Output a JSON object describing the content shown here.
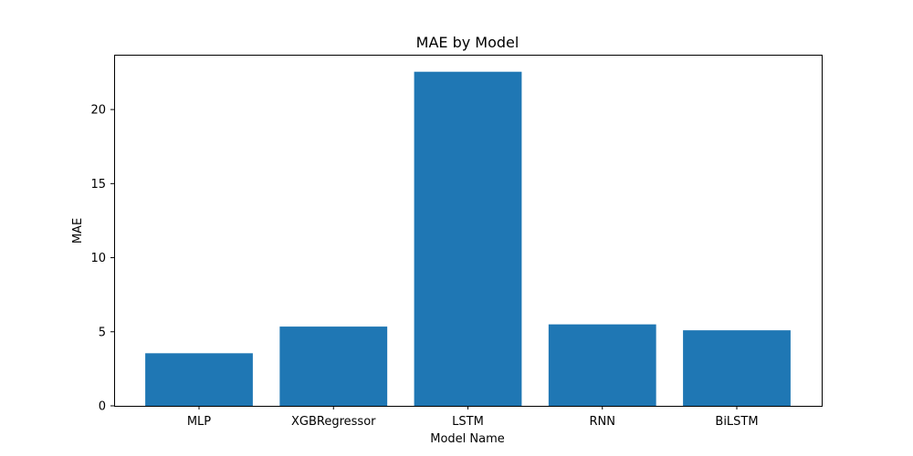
{
  "chart_data": {
    "type": "bar",
    "title": "MAE by Model",
    "xlabel": "Model Name",
    "ylabel": "MAE",
    "categories": [
      "MLP",
      "XGBRegressor",
      "LSTM",
      "RNN",
      "BiLSTM"
    ],
    "values": [
      3.55,
      5.35,
      22.55,
      5.5,
      5.1
    ],
    "ylim": [
      0,
      23.7
    ],
    "yticks": [
      0,
      5,
      10,
      15,
      20
    ],
    "grid": false,
    "bar_color": "#1f77b4"
  }
}
